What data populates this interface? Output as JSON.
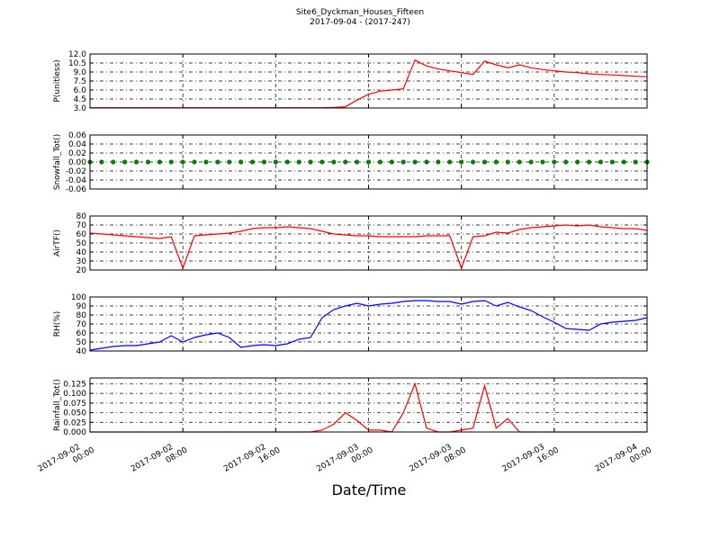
{
  "chart_data": {
    "type": "line",
    "title": "Site6_Dyckman_Houses_Fifteen",
    "subtitle": "2017-09-04 - (2017-247)",
    "x_label": "Date/Time",
    "grid": true,
    "xlim": [
      "2017-09-02 00:00",
      "2017-09-04 00:00"
    ],
    "xticks": [
      {
        "value": "2017-09-02 00:00",
        "label": "2017-09-02\n00:00"
      },
      {
        "value": "2017-09-02 08:00",
        "label": "2017-09-02\n08:00"
      },
      {
        "value": "2017-09-02 16:00",
        "label": "2017-09-02\n16:00"
      },
      {
        "value": "2017-09-03 00:00",
        "label": "2017-09-03\n00:00"
      },
      {
        "value": "2017-09-03 08:00",
        "label": "2017-09-03\n08:00"
      },
      {
        "value": "2017-09-03 16:00",
        "label": "2017-09-03\n16:00"
      },
      {
        "value": "2017-09-04 00:00",
        "label": "2017-09-04\n00:00"
      }
    ],
    "x": [
      "2017-09-02 00:00",
      "2017-09-02 01:00",
      "2017-09-02 02:00",
      "2017-09-02 03:00",
      "2017-09-02 04:00",
      "2017-09-02 05:00",
      "2017-09-02 06:00",
      "2017-09-02 07:00",
      "2017-09-02 08:00",
      "2017-09-02 09:00",
      "2017-09-02 10:00",
      "2017-09-02 11:00",
      "2017-09-02 12:00",
      "2017-09-02 13:00",
      "2017-09-02 14:00",
      "2017-09-02 15:00",
      "2017-09-02 16:00",
      "2017-09-02 17:00",
      "2017-09-02 18:00",
      "2017-09-02 19:00",
      "2017-09-02 20:00",
      "2017-09-02 21:00",
      "2017-09-02 22:00",
      "2017-09-02 23:00",
      "2017-09-03 00:00",
      "2017-09-03 01:00",
      "2017-09-03 02:00",
      "2017-09-03 03:00",
      "2017-09-03 04:00",
      "2017-09-03 05:00",
      "2017-09-03 06:00",
      "2017-09-03 07:00",
      "2017-09-03 08:00",
      "2017-09-03 09:00",
      "2017-09-03 10:00",
      "2017-09-03 11:00",
      "2017-09-03 12:00",
      "2017-09-03 13:00",
      "2017-09-03 14:00",
      "2017-09-03 15:00",
      "2017-09-03 16:00",
      "2017-09-03 17:00",
      "2017-09-03 18:00",
      "2017-09-03 19:00",
      "2017-09-03 20:00",
      "2017-09-03 21:00",
      "2017-09-03 22:00",
      "2017-09-03 23:00",
      "2017-09-04 00:00"
    ],
    "panels": [
      {
        "y_label": "P(unitless)",
        "ylim": [
          3,
          12
        ],
        "yticks": [
          {
            "value": 3,
            "label": "3.0"
          },
          4.5,
          {
            "value": 6,
            "label": "6.0"
          },
          7.5,
          {
            "value": 9,
            "label": "9.0"
          },
          10.5,
          {
            "value": 12,
            "label": "12.0"
          }
        ],
        "series": [
          {
            "color": "#ff0000",
            "style": "line",
            "values": [
              3.05,
              3.05,
              3.05,
              3.05,
              3.05,
              3.05,
              3.05,
              3.05,
              3.05,
              3.05,
              3.05,
              3.05,
              3.05,
              3.05,
              3.05,
              3.05,
              3.05,
              3.05,
              3.05,
              3.05,
              3.05,
              3.1,
              3.2,
              4.3,
              5.3,
              5.8,
              6.0,
              6.2,
              11.0,
              10.0,
              9.5,
              9.2,
              8.9,
              8.6,
              10.8,
              10.2,
              9.7,
              10.2,
              9.7,
              9.4,
              9.2,
              9.0,
              8.9,
              8.7,
              8.6,
              8.5,
              8.4,
              8.3,
              8.2
            ]
          }
        ]
      },
      {
        "y_label": "Snowfall_Tot()",
        "ylim": [
          -0.06,
          0.06
        ],
        "yticks": [
          -0.06,
          -0.04,
          -0.02,
          {
            "value": 0,
            "label": "0.00"
          },
          0.02,
          0.04,
          0.06
        ],
        "series": [
          {
            "color": "#008000",
            "style": "markers",
            "values": [
              0,
              0,
              0,
              0,
              0,
              0,
              0,
              0,
              0,
              0,
              0,
              0,
              0,
              0,
              0,
              0,
              0,
              0,
              0,
              0,
              0,
              0,
              0,
              0,
              0,
              0,
              0,
              0,
              0,
              0,
              0,
              0,
              0,
              0,
              0,
              0,
              0,
              0,
              0,
              0,
              0,
              0,
              0,
              0,
              0,
              0,
              0,
              0,
              0
            ]
          }
        ]
      },
      {
        "y_label": "AirTF()",
        "ylim": [
          20,
          80
        ],
        "yticks": [
          20,
          30,
          40,
          50,
          60,
          70,
          80
        ],
        "series": [
          {
            "color": "#ff0000",
            "style": "line",
            "values": [
              61,
              60,
              59,
              58,
              57,
              56,
              55,
              57,
              22,
              58,
              59,
              60,
              61,
              63,
              66,
              67,
              67,
              68,
              67,
              66,
              63,
              60,
              59,
              58,
              58,
              57,
              57,
              57,
              57,
              58,
              58,
              58,
              22,
              57,
              58,
              62,
              61,
              65,
              67,
              68,
              69,
              70,
              69,
              70,
              68,
              67,
              66,
              66,
              64
            ]
          }
        ]
      },
      {
        "y_label": "RH(%)",
        "ylim": [
          40,
          100
        ],
        "yticks": [
          40,
          50,
          60,
          70,
          80,
          90,
          100
        ],
        "series": [
          {
            "color": "#0000ff",
            "style": "line",
            "values": [
              41,
              43,
              45,
              46,
              46,
              48,
              50,
              57,
              50,
              55,
              58,
              60,
              55,
              44,
              46,
              47,
              46,
              48,
              53,
              55,
              77,
              86,
              90,
              93,
              90,
              92,
              93,
              95,
              96,
              96,
              95,
              95,
              92,
              95,
              96,
              90,
              94,
              89,
              85,
              78,
              72,
              65,
              64,
              63,
              70,
              72,
              73,
              74,
              77
            ]
          }
        ]
      },
      {
        "y_label": "Rainfall_Tot()",
        "ylim": [
          0,
          0.14
        ],
        "yticks": [
          {
            "value": 0,
            "label": "0.000"
          },
          0.025,
          {
            "value": 0.05,
            "label": "0.050"
          },
          0.075,
          {
            "value": 0.1,
            "label": "0.100"
          },
          0.125
        ],
        "series": [
          {
            "color": "#ff0000",
            "style": "line",
            "values": [
              0,
              0,
              0,
              0,
              0,
              0,
              0,
              0,
              0,
              0,
              0,
              0,
              0,
              0,
              0,
              0,
              0,
              0,
              0,
              0,
              0.005,
              0.02,
              0.05,
              0.03,
              0.005,
              0.005,
              0,
              0.05,
              0.125,
              0.01,
              0,
              0,
              0.005,
              0.01,
              0.12,
              0.01,
              0.035,
              0,
              0,
              0,
              0,
              0,
              0,
              0,
              0,
              0,
              0,
              0,
              0
            ]
          }
        ]
      }
    ]
  }
}
